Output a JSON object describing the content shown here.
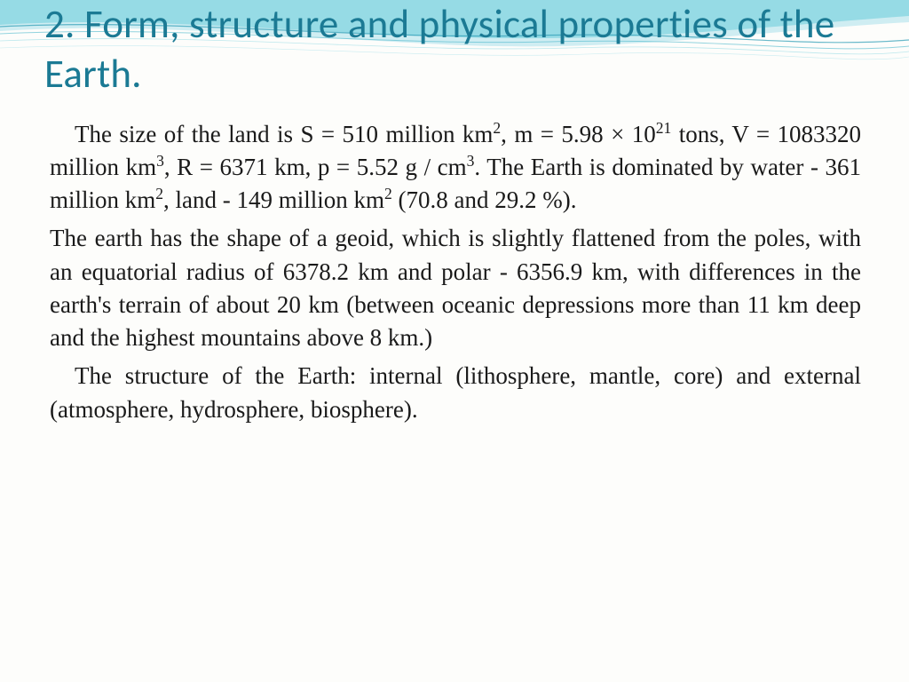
{
  "title": "2. Form, structure and physical properties of the Earth.",
  "colors": {
    "title_color": "#1b7a94",
    "body_text_color": "#1a1a1a",
    "wave_light": "#c3e8f0",
    "wave_mid": "#7dd3e0",
    "wave_dark": "#4bb8cc",
    "wave_line": "#2a9bb5",
    "background": "#fdfdfb"
  },
  "typography": {
    "title_font": "Calibri Light",
    "title_size_pt": 34,
    "body_font": "Times New Roman",
    "body_size_pt": 20
  },
  "paragraphs": {
    "p1": {
      "indent": true,
      "segments": [
        {
          "t": "The size of the land is S = 510 million km"
        },
        {
          "t": "2",
          "sup": true
        },
        {
          "t": ", m = 5.98 × 10"
        },
        {
          "t": "21",
          "sup": true
        },
        {
          "t": " tons, V = 1083320 million km"
        },
        {
          "t": "3",
          "sup": true
        },
        {
          "t": ", R = 6371 km, p = 5.52 g / cm"
        },
        {
          "t": "3",
          "sup": true
        },
        {
          "t": ". The Earth is dominated by water - 361 million km"
        },
        {
          "t": "2",
          "sup": true
        },
        {
          "t": ", land - 149 million km"
        },
        {
          "t": "2",
          "sup": true
        },
        {
          "t": " (70.8 and 29.2 %)."
        }
      ]
    },
    "p2": {
      "indent": false,
      "segments": [
        {
          "t": "The earth has the shape of a geoid, which is slightly flattened from the poles, with an equatorial radius of 6378.2 km and polar - 6356.9 km, with differences in the earth's terrain of about 20 km (between oceanic depressions more than 11 km deep and the highest mountains above 8 km.)"
        }
      ]
    },
    "p3": {
      "indent": true,
      "segments": [
        {
          "t": "The structure of the Earth: internal (lithosphere, mantle, core) and external (atmosphere, hydrosphere, biosphere)."
        }
      ]
    }
  }
}
